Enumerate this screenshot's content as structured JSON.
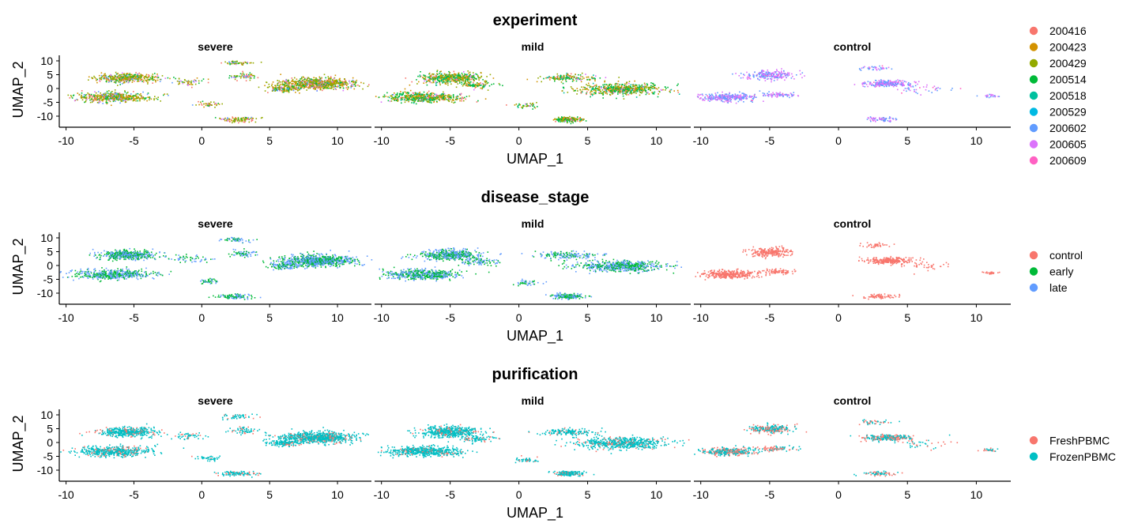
{
  "chart_data": [
    {
      "type": "scatter",
      "title": "experiment",
      "xlabel": "UMAP_1",
      "ylabel": "UMAP_2",
      "facets": [
        "severe",
        "mild",
        "control"
      ],
      "xlim": [
        -10.5,
        12.5
      ],
      "ylim": [
        -14,
        12
      ],
      "x_ticks": [
        -10,
        -5,
        0,
        5,
        10
      ],
      "y_ticks": [
        -10,
        -5,
        0,
        5,
        10
      ],
      "grid": false,
      "legend_position": "right",
      "legend": [
        {
          "label": "200416",
          "color": "#F8766D"
        },
        {
          "label": "200423",
          "color": "#D39200"
        },
        {
          "label": "200429",
          "color": "#93AA00"
        },
        {
          "label": "200514",
          "color": "#00BA38"
        },
        {
          "label": "200518",
          "color": "#00C19F"
        },
        {
          "label": "200529",
          "color": "#00B9E3"
        },
        {
          "label": "200602",
          "color": "#619CFF"
        },
        {
          "label": "200605",
          "color": "#DB72FB"
        },
        {
          "label": "200609",
          "color": "#FF61C3"
        }
      ],
      "facet_color_mix": {
        "severe": [
          [
            0,
            0.1
          ],
          [
            1,
            0.2
          ],
          [
            2,
            0.4
          ],
          [
            3,
            0.15
          ],
          [
            6,
            0.08
          ],
          [
            7,
            0.07
          ]
        ],
        "mild": [
          [
            0,
            0.08
          ],
          [
            1,
            0.22
          ],
          [
            2,
            0.25
          ],
          [
            3,
            0.3
          ],
          [
            4,
            0.1
          ],
          [
            7,
            0.05
          ]
        ],
        "control": [
          [
            6,
            0.45
          ],
          [
            7,
            0.5
          ],
          [
            8,
            0.05
          ]
        ]
      }
    },
    {
      "type": "scatter",
      "title": "disease_stage",
      "xlabel": "UMAP_1",
      "ylabel": "UMAP_2",
      "facets": [
        "severe",
        "mild",
        "control"
      ],
      "xlim": [
        -10.5,
        12.5
      ],
      "ylim": [
        -14,
        12
      ],
      "x_ticks": [
        -10,
        -5,
        0,
        5,
        10
      ],
      "y_ticks": [
        -10,
        -5,
        0,
        5,
        10
      ],
      "grid": false,
      "legend_position": "right",
      "legend": [
        {
          "label": "control",
          "color": "#F8766D"
        },
        {
          "label": "early",
          "color": "#00BA38"
        },
        {
          "label": "late",
          "color": "#619CFF"
        }
      ],
      "facet_color_mix": {
        "severe": [
          [
            1,
            0.5
          ],
          [
            2,
            0.5
          ]
        ],
        "mild": [
          [
            1,
            0.5
          ],
          [
            2,
            0.5
          ]
        ],
        "control": [
          [
            0,
            1.0
          ]
        ]
      }
    },
    {
      "type": "scatter",
      "title": "purification",
      "xlabel": "UMAP_1",
      "ylabel": "UMAP_2",
      "facets": [
        "severe",
        "mild",
        "control"
      ],
      "xlim": [
        -10.5,
        12.5
      ],
      "ylim": [
        -14,
        12
      ],
      "x_ticks": [
        -10,
        -5,
        0,
        5,
        10
      ],
      "y_ticks": [
        -10,
        -5,
        0,
        5,
        10
      ],
      "grid": false,
      "legend_position": "right",
      "legend": [
        {
          "label": "FreshPBMC",
          "color": "#F8766D"
        },
        {
          "label": "FrozenPBMC",
          "color": "#00BFC4"
        }
      ],
      "facet_color_mix": {
        "severe": [
          [
            0,
            0.2
          ],
          [
            1,
            0.8
          ]
        ],
        "mild": [
          [
            0,
            0.15
          ],
          [
            1,
            0.85
          ]
        ],
        "control": [
          [
            0,
            0.45
          ],
          [
            1,
            0.55
          ]
        ]
      }
    }
  ]
}
